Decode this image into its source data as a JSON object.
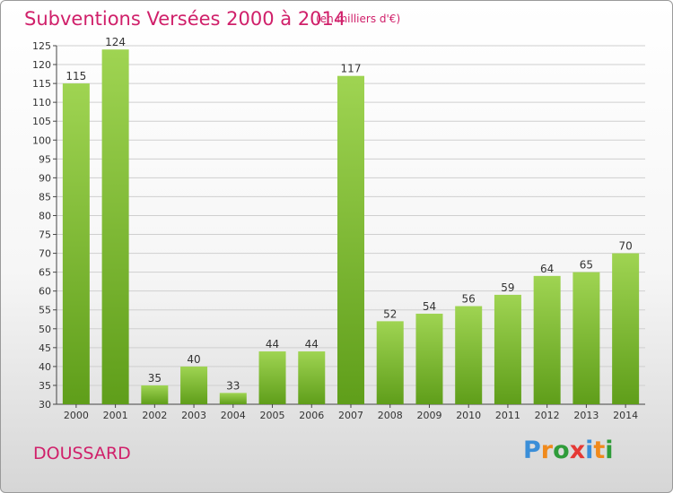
{
  "header": {
    "title": "Subventions Versées 2000 à 2014",
    "subtitle": "(en milliers d'€)"
  },
  "footer": {
    "commune": "DOUSSARD",
    "logo": "Proxiti"
  },
  "colors": {
    "title": "#d0206a",
    "bar_light": "#9fd452",
    "bar_dark": "#5f9e1a",
    "grid": "#cfcfcf",
    "logo": [
      "#3a8ed8",
      "#f08a1c",
      "#2f9c3a",
      "#e53935",
      "#3a8ed8",
      "#f08a1c",
      "#2f9c3a"
    ]
  },
  "chart_data": {
    "type": "bar",
    "title": "Subventions Versées 2000 à 2014",
    "subtitle": "(en milliers d'€)",
    "xlabel": "",
    "ylabel": "",
    "categories": [
      "2000",
      "2001",
      "2002",
      "2003",
      "2004",
      "2005",
      "2006",
      "2007",
      "2008",
      "2009",
      "2010",
      "2011",
      "2012",
      "2013",
      "2014"
    ],
    "values": [
      115,
      124,
      35,
      40,
      33,
      44,
      44,
      117,
      52,
      54,
      56,
      59,
      64,
      65,
      70
    ],
    "ylim": [
      30,
      125
    ],
    "yticks": [
      30,
      35,
      40,
      45,
      50,
      55,
      60,
      65,
      70,
      75,
      80,
      85,
      90,
      95,
      100,
      105,
      110,
      115,
      120,
      125
    ],
    "grid": true,
    "data_labels": true
  }
}
